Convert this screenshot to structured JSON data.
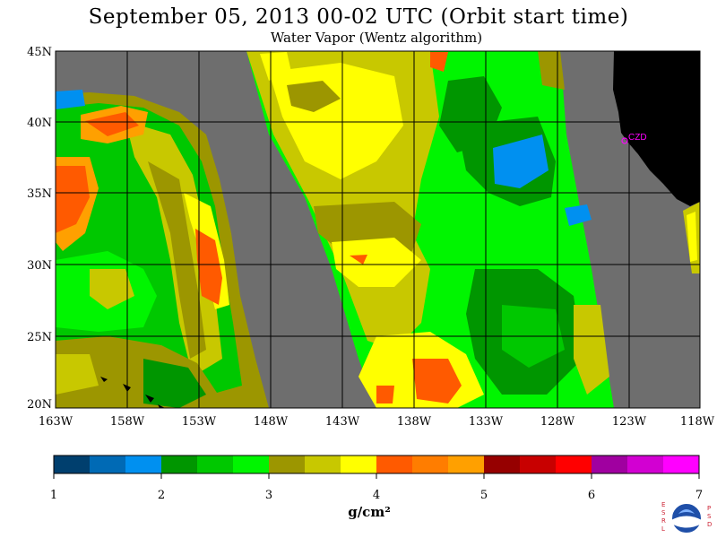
{
  "header": {
    "title": "September 05, 2013  00-02 UTC  (Orbit start time)",
    "subtitle": "Water Vapor (Wentz algorithm)"
  },
  "map": {
    "lat_labels": [
      "45N",
      "40N",
      "35N",
      "30N",
      "25N",
      "20N"
    ],
    "lon_labels": [
      "163W",
      "158W",
      "153W",
      "148W",
      "143W",
      "138W",
      "133W",
      "128W",
      "123W",
      "118W"
    ],
    "station_label": "CZD",
    "colors": {
      "no_data": "#6e6e6e",
      "land": "#000000",
      "station": "#ff00ff",
      "grid": "#000000"
    }
  },
  "colorbar": {
    "tick_labels": [
      "1",
      "2",
      "3",
      "4",
      "5",
      "6",
      "7"
    ],
    "colors": [
      "#003f6e",
      "#006ab5",
      "#0090f0",
      "#009600",
      "#00c800",
      "#00f500",
      "#9c9600",
      "#c8c800",
      "#ffff00",
      "#ff5a00",
      "#ff7d00",
      "#ffa000",
      "#960000",
      "#c80000",
      "#ff0000",
      "#a000a0",
      "#d200d2",
      "#ff00ff"
    ],
    "units": "g/cm²"
  },
  "logo": {
    "left_letters": "ESRL",
    "right_letters": "PSD"
  }
}
